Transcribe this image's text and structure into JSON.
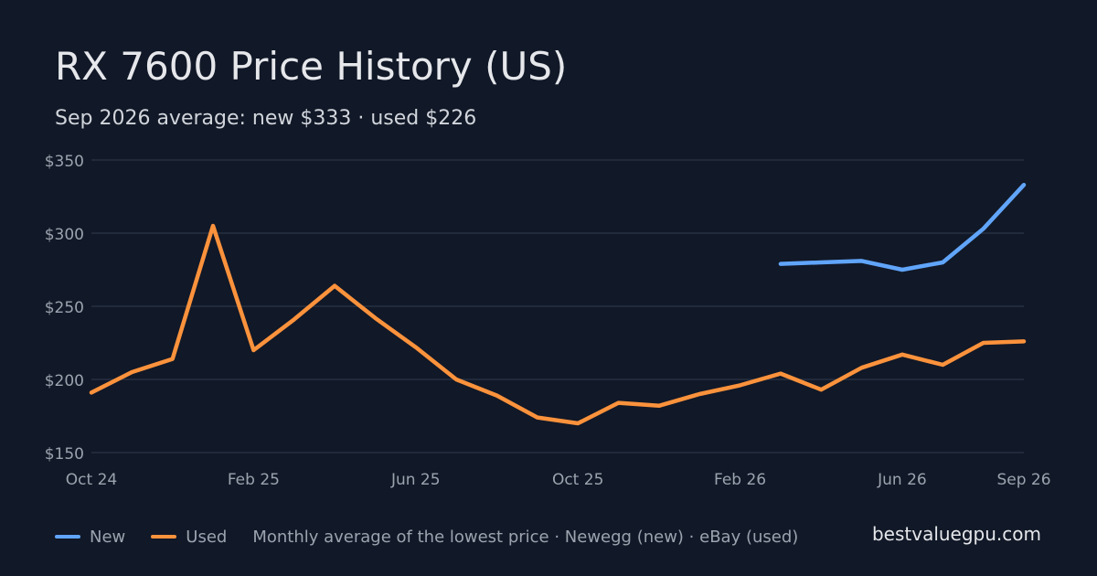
{
  "header": {
    "title": "RX 7600 Price History (US)",
    "subtitle": "Sep 2026 average: new $333 · used $226"
  },
  "footer": {
    "note": "Monthly average of the lowest price · Newegg (new) · eBay (used)",
    "brand": "bestvaluegpu.com"
  },
  "chart_data": {
    "type": "line",
    "title": "RX 7600 Price History (US)",
    "subtitle": "Sep 2026 average: new $333 · used $226",
    "x": [
      "2024-10",
      "2024-11",
      "2024-12",
      "2025-01",
      "2025-02",
      "2025-03",
      "2025-04",
      "2025-05",
      "2025-06",
      "2025-07",
      "2025-08",
      "2025-09",
      "2025-10",
      "2025-11",
      "2025-12",
      "2026-01",
      "2026-02",
      "2026-03",
      "2026-04",
      "2026-05",
      "2026-06",
      "2026-07",
      "2026-08",
      "2026-09"
    ],
    "x_ticks": [
      {
        "x": "2024-10",
        "label": "Oct 24"
      },
      {
        "x": "2025-02",
        "label": "Feb 25"
      },
      {
        "x": "2025-06",
        "label": "Jun 25"
      },
      {
        "x": "2025-10",
        "label": "Oct 25"
      },
      {
        "x": "2026-02",
        "label": "Feb 26"
      },
      {
        "x": "2026-06",
        "label": "Jun 26"
      },
      {
        "x": "2026-09",
        "label": "Sep 26"
      }
    ],
    "ylim": [
      150,
      350
    ],
    "y_ticks": [
      {
        "value": 150,
        "label": "$150"
      },
      {
        "value": 200,
        "label": "$200"
      },
      {
        "value": 250,
        "label": "$250"
      },
      {
        "value": 300,
        "label": "$300"
      },
      {
        "value": 350,
        "label": "$350"
      }
    ],
    "grid": true,
    "legend": "bottom-left",
    "series": [
      {
        "name": "New",
        "color": "#60a5fa",
        "values": [
          null,
          null,
          null,
          null,
          null,
          null,
          null,
          null,
          null,
          null,
          null,
          null,
          null,
          null,
          null,
          null,
          null,
          279,
          280,
          281,
          275,
          280,
          303,
          333
        ]
      },
      {
        "name": "Used",
        "color": "#fb923c",
        "values": [
          191,
          205,
          214,
          305,
          220,
          241,
          264,
          242,
          222,
          200,
          189,
          174,
          170,
          184,
          182,
          190,
          196,
          204,
          193,
          208,
          217,
          210,
          225,
          226
        ]
      }
    ]
  }
}
